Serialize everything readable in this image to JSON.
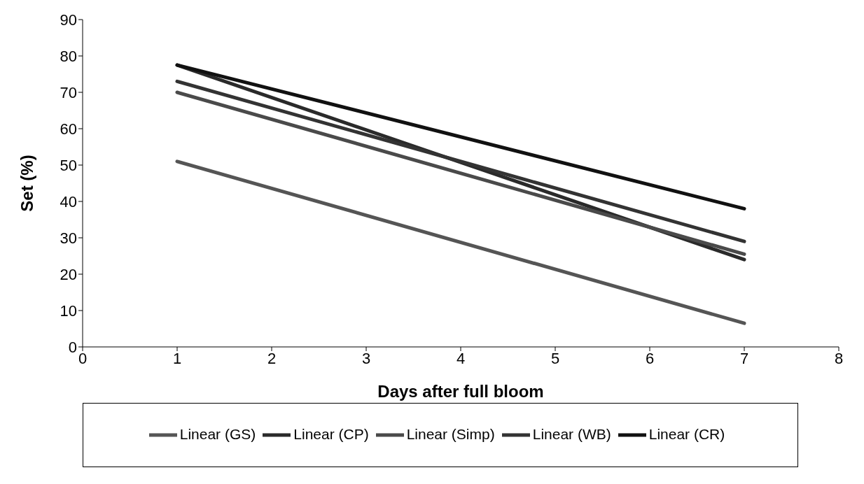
{
  "chart_data": {
    "type": "line",
    "xlabel": "Days after full bloom",
    "ylabel": "Set (%)",
    "x": [
      1,
      7
    ],
    "series": [
      {
        "name": "Linear (GS)",
        "color": "#555555",
        "values": [
          51,
          6.5
        ]
      },
      {
        "name": "Linear (CP)",
        "color": "#2a2a2a",
        "values": [
          77.5,
          24
        ]
      },
      {
        "name": "Linear (Simp)",
        "color": "#4a4a4a",
        "values": [
          70,
          25.5
        ]
      },
      {
        "name": "Linear (WB)",
        "color": "#333333",
        "values": [
          73,
          29
        ]
      },
      {
        "name": "Linear (CR)",
        "color": "#111111",
        "values": [
          77.5,
          38
        ]
      }
    ],
    "xlim": [
      0,
      8
    ],
    "xticks": [
      0,
      1,
      2,
      3,
      4,
      5,
      6,
      7,
      8
    ],
    "ylim": [
      0,
      90
    ],
    "yticks": [
      0,
      10,
      20,
      30,
      40,
      50,
      60,
      70,
      80,
      90
    ],
    "grid": false,
    "legend": "bottom",
    "marker": "none",
    "line_style": "solid"
  }
}
